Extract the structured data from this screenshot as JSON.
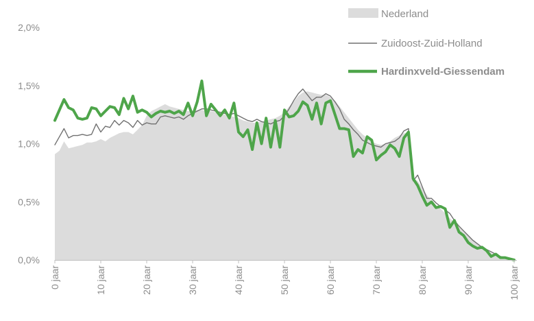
{
  "colors": {
    "nederland_fill": "#dcdcdc",
    "zuidoost_line": "#707070",
    "hardinxveld_line": "#4ea54a",
    "hardinxveld_text": "#4ea54a",
    "axis_text": "#8c8c8c"
  },
  "chart_data": {
    "type": "area",
    "title": "",
    "xlabel": "",
    "ylabel": "",
    "xlim": [
      0,
      100
    ],
    "ylim": [
      0,
      2.0
    ],
    "grid": false,
    "legend_position": "top-right",
    "y_ticks": [
      {
        "value": 0.0,
        "label": "0,0%"
      },
      {
        "value": 0.5,
        "label": "0,5%"
      },
      {
        "value": 1.0,
        "label": "1,0%"
      },
      {
        "value": 1.5,
        "label": "1,5%"
      },
      {
        "value": 2.0,
        "label": "2,0%"
      }
    ],
    "x_ticks": [
      {
        "value": 0,
        "label": "0 jaar"
      },
      {
        "value": 10,
        "label": "10 jaar"
      },
      {
        "value": 20,
        "label": "20 jaar"
      },
      {
        "value": 30,
        "label": "30 jaar"
      },
      {
        "value": 40,
        "label": "40 jaar"
      },
      {
        "value": 50,
        "label": "50 jaar"
      },
      {
        "value": 60,
        "label": "60 jaar"
      },
      {
        "value": 70,
        "label": "70 jaar"
      },
      {
        "value": 80,
        "label": "80 jaar"
      },
      {
        "value": 90,
        "label": "90 jaar"
      },
      {
        "value": 100,
        "label": "100 jaar"
      }
    ],
    "x": [
      0,
      1,
      2,
      3,
      4,
      5,
      6,
      7,
      8,
      9,
      10,
      11,
      12,
      13,
      14,
      15,
      16,
      17,
      18,
      19,
      20,
      21,
      22,
      23,
      24,
      25,
      26,
      27,
      28,
      29,
      30,
      31,
      32,
      33,
      34,
      35,
      36,
      37,
      38,
      39,
      40,
      41,
      42,
      43,
      44,
      45,
      46,
      47,
      48,
      49,
      50,
      51,
      52,
      53,
      54,
      55,
      56,
      57,
      58,
      59,
      60,
      61,
      62,
      63,
      64,
      65,
      66,
      67,
      68,
      69,
      70,
      71,
      72,
      73,
      74,
      75,
      76,
      77,
      78,
      79,
      80,
      81,
      82,
      83,
      84,
      85,
      86,
      87,
      88,
      89,
      90,
      91,
      92,
      93,
      94,
      95,
      96,
      97,
      98,
      99,
      100
    ],
    "series": [
      {
        "name": "Nederland",
        "style": "area",
        "values": [
          0.91,
          0.94,
          1.02,
          0.96,
          0.97,
          0.98,
          0.99,
          1.01,
          1.01,
          1.02,
          1.04,
          1.02,
          1.05,
          1.07,
          1.09,
          1.1,
          1.1,
          1.08,
          1.12,
          1.16,
          1.24,
          1.28,
          1.3,
          1.32,
          1.34,
          1.32,
          1.31,
          1.3,
          1.29,
          1.28,
          1.28,
          1.29,
          1.29,
          1.28,
          1.28,
          1.27,
          1.26,
          1.25,
          1.24,
          1.23,
          1.22,
          1.2,
          1.19,
          1.18,
          1.18,
          1.19,
          1.2,
          1.21,
          1.22,
          1.24,
          1.27,
          1.32,
          1.36,
          1.41,
          1.44,
          1.45,
          1.44,
          1.43,
          1.42,
          1.42,
          1.4,
          1.37,
          1.32,
          1.27,
          1.22,
          1.17,
          1.12,
          1.08,
          1.05,
          1.02,
          1.0,
          0.99,
          1.0,
          1.02,
          1.05,
          1.07,
          1.09,
          1.09,
          0.7,
          0.68,
          0.62,
          0.56,
          0.51,
          0.47,
          0.44,
          0.4,
          0.36,
          0.32,
          0.28,
          0.24,
          0.21,
          0.17,
          0.14,
          0.11,
          0.08,
          0.06,
          0.04,
          0.03,
          0.02,
          0.01,
          0.005
        ]
      },
      {
        "name": "Zuidoost-Zuid-Holland",
        "style": "thin-line",
        "values": [
          0.99,
          1.06,
          1.13,
          1.05,
          1.07,
          1.07,
          1.08,
          1.07,
          1.08,
          1.17,
          1.1,
          1.15,
          1.14,
          1.2,
          1.16,
          1.2,
          1.18,
          1.14,
          1.2,
          1.16,
          1.18,
          1.17,
          1.17,
          1.23,
          1.24,
          1.23,
          1.22,
          1.23,
          1.21,
          1.24,
          1.26,
          1.28,
          1.3,
          1.3,
          1.29,
          1.28,
          1.27,
          1.26,
          1.25,
          1.26,
          1.24,
          1.22,
          1.2,
          1.19,
          1.21,
          1.19,
          1.18,
          1.17,
          1.19,
          1.2,
          1.24,
          1.3,
          1.37,
          1.43,
          1.47,
          1.42,
          1.37,
          1.4,
          1.4,
          1.43,
          1.41,
          1.36,
          1.3,
          1.21,
          1.17,
          1.12,
          1.08,
          1.03,
          1.01,
          0.99,
          0.98,
          0.97,
          1.0,
          1.01,
          1.02,
          1.05,
          1.11,
          1.13,
          0.68,
          0.73,
          0.63,
          0.53,
          0.53,
          0.49,
          0.46,
          0.43,
          0.4,
          0.34,
          0.29,
          0.25,
          0.21,
          0.17,
          0.14,
          0.11,
          0.09,
          0.07,
          0.05,
          0.03,
          0.02,
          0.01,
          0.0
        ]
      },
      {
        "name": "Hardinxveld-Giessendam",
        "style": "thick-line",
        "values": [
          1.2,
          1.29,
          1.38,
          1.31,
          1.29,
          1.22,
          1.21,
          1.22,
          1.31,
          1.3,
          1.24,
          1.28,
          1.32,
          1.31,
          1.25,
          1.39,
          1.3,
          1.41,
          1.27,
          1.29,
          1.27,
          1.23,
          1.26,
          1.28,
          1.27,
          1.28,
          1.26,
          1.28,
          1.25,
          1.35,
          1.24,
          1.36,
          1.54,
          1.24,
          1.34,
          1.29,
          1.24,
          1.29,
          1.22,
          1.35,
          1.1,
          1.06,
          1.12,
          0.95,
          1.18,
          1.0,
          1.22,
          0.97,
          1.2,
          0.97,
          1.29,
          1.23,
          1.24,
          1.28,
          1.36,
          1.33,
          1.21,
          1.35,
          1.17,
          1.35,
          1.37,
          1.25,
          1.13,
          1.13,
          1.12,
          0.89,
          0.95,
          0.92,
          1.06,
          1.03,
          0.86,
          0.9,
          0.93,
          0.99,
          0.96,
          0.89,
          1.05,
          1.1,
          0.7,
          0.64,
          0.55,
          0.47,
          0.5,
          0.45,
          0.46,
          0.44,
          0.28,
          0.34,
          0.24,
          0.21,
          0.15,
          0.12,
          0.1,
          0.11,
          0.08,
          0.03,
          0.05,
          0.02,
          0.02,
          0.01,
          0.0
        ]
      }
    ]
  }
}
